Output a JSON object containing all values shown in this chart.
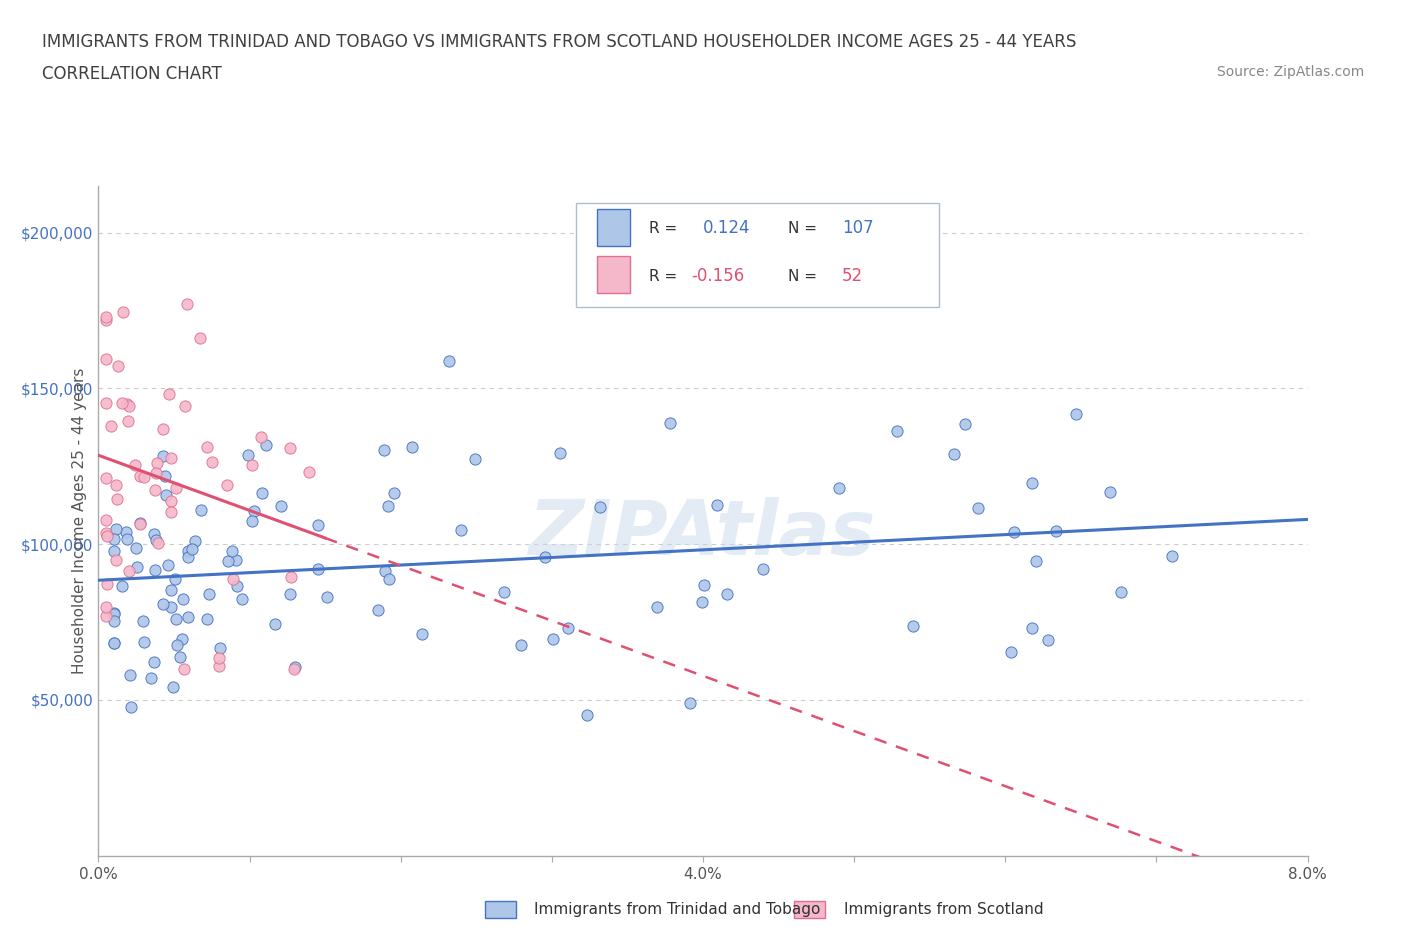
{
  "title_line1": "IMMIGRANTS FROM TRINIDAD AND TOBAGO VS IMMIGRANTS FROM SCOTLAND HOUSEHOLDER INCOME AGES 25 - 44 YEARS",
  "title_line2": "CORRELATION CHART",
  "source_text": "Source: ZipAtlas.com",
  "series1_name": "Immigrants from Trinidad and Tobago",
  "series2_name": "Immigrants from Scotland",
  "series1_color": "#aec6e8",
  "series2_color": "#f5b8cb",
  "series1_edge_color": "#4472c4",
  "series2_edge_color": "#e07090",
  "series1_line_color": "#4472c4",
  "series2_line_color": "#e05070",
  "series1_R": 0.124,
  "series1_N": 107,
  "series2_R": -0.156,
  "series2_N": 52,
  "xlim": [
    0.0,
    0.08
  ],
  "ylim": [
    0,
    215000
  ],
  "background_color": "#ffffff",
  "grid_color": "#cccccc",
  "title_color": "#404040",
  "ylabel_label": "Householder Income Ages 25 - 44 years",
  "watermark": "ZipAtlas",
  "legend_box_color": "#e8eef8",
  "legend_box_edge": "#b0c0d8"
}
